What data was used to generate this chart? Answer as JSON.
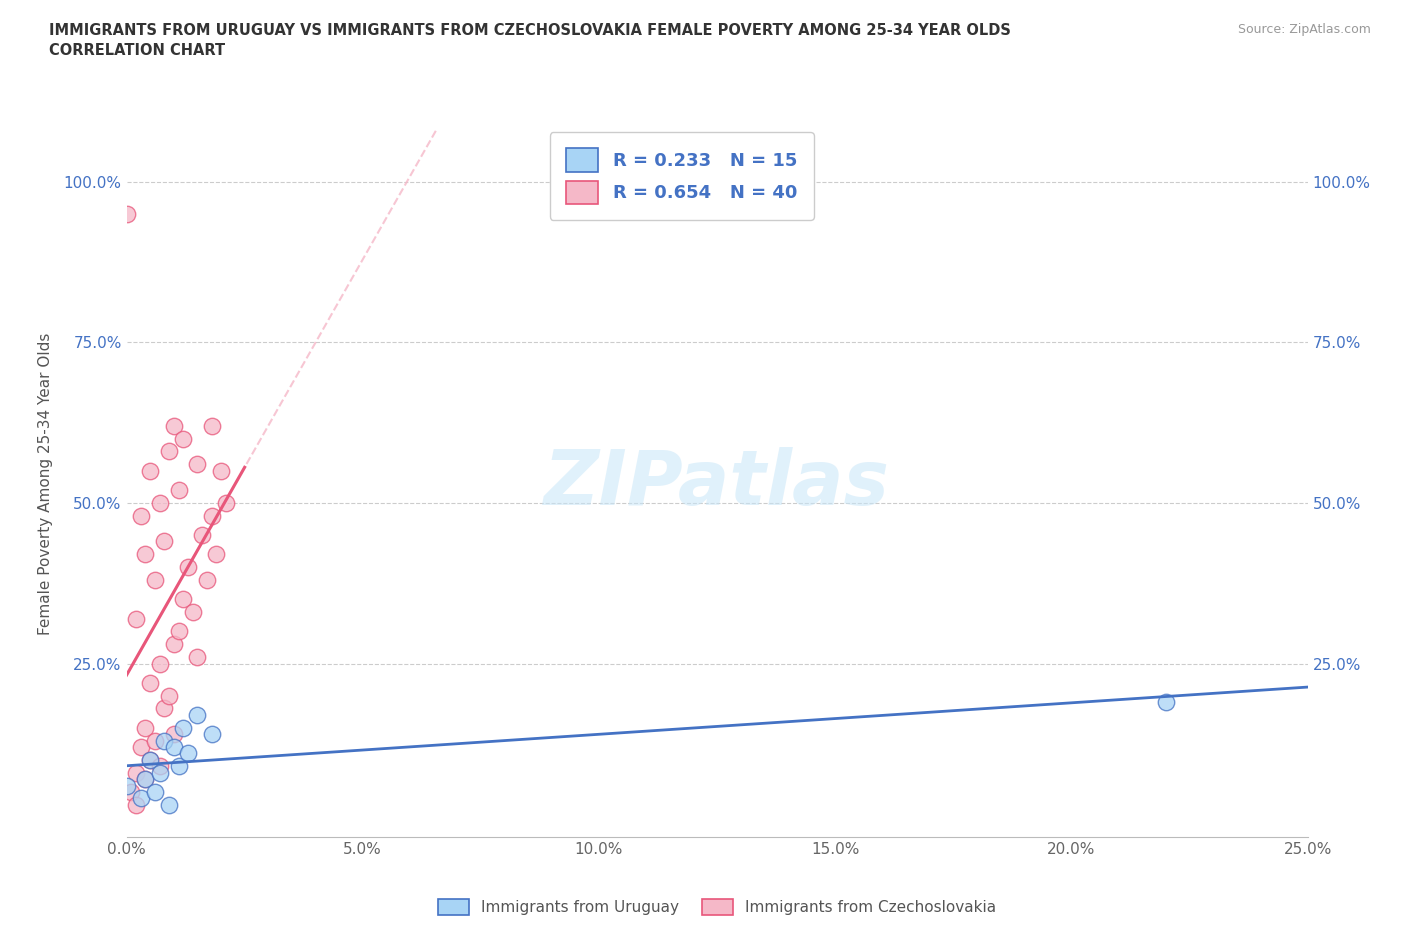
{
  "title_line1": "IMMIGRANTS FROM URUGUAY VS IMMIGRANTS FROM CZECHOSLOVAKIA FEMALE POVERTY AMONG 25-34 YEAR OLDS",
  "title_line2": "CORRELATION CHART",
  "source": "Source: ZipAtlas.com",
  "ylabel": "Female Poverty Among 25-34 Year Olds",
  "xlim": [
    0.0,
    0.25
  ],
  "ylim": [
    -0.02,
    1.08
  ],
  "xtick_labels": [
    "0.0%",
    "5.0%",
    "10.0%",
    "15.0%",
    "20.0%",
    "25.0%"
  ],
  "xtick_vals": [
    0.0,
    0.05,
    0.1,
    0.15,
    0.2,
    0.25
  ],
  "ytick_labels": [
    "25.0%",
    "50.0%",
    "75.0%",
    "100.0%"
  ],
  "ytick_vals": [
    0.25,
    0.5,
    0.75,
    1.0
  ],
  "watermark": "ZIPatlas",
  "legend_label1": "Immigrants from Uruguay",
  "legend_label2": "Immigrants from Czechoslovakia",
  "color_uruguay": "#a8d4f5",
  "color_czech": "#f5b8c8",
  "color_line_uruguay": "#4472C4",
  "color_line_czech": "#E8567A",
  "uruguay_x": [
    0.0,
    0.003,
    0.004,
    0.005,
    0.006,
    0.007,
    0.008,
    0.009,
    0.01,
    0.011,
    0.012,
    0.013,
    0.015,
    0.018,
    0.22
  ],
  "uruguay_y": [
    0.06,
    0.04,
    0.07,
    0.1,
    0.05,
    0.08,
    0.13,
    0.03,
    0.12,
    0.09,
    0.15,
    0.11,
    0.17,
    0.14,
    0.19
  ],
  "czech_x": [
    0.0,
    0.001,
    0.002,
    0.002,
    0.003,
    0.003,
    0.004,
    0.004,
    0.004,
    0.005,
    0.005,
    0.005,
    0.006,
    0.006,
    0.007,
    0.007,
    0.007,
    0.008,
    0.008,
    0.009,
    0.009,
    0.01,
    0.01,
    0.01,
    0.011,
    0.011,
    0.012,
    0.012,
    0.013,
    0.014,
    0.015,
    0.015,
    0.016,
    0.017,
    0.018,
    0.018,
    0.019,
    0.02,
    0.021,
    0.002
  ],
  "czech_y": [
    0.95,
    0.05,
    0.08,
    0.32,
    0.12,
    0.48,
    0.07,
    0.15,
    0.42,
    0.1,
    0.22,
    0.55,
    0.13,
    0.38,
    0.09,
    0.25,
    0.5,
    0.18,
    0.44,
    0.2,
    0.58,
    0.14,
    0.28,
    0.62,
    0.3,
    0.52,
    0.35,
    0.6,
    0.4,
    0.33,
    0.26,
    0.56,
    0.45,
    0.38,
    0.48,
    0.62,
    0.42,
    0.55,
    0.5,
    0.03
  ],
  "trend_czech_x_end": 0.025,
  "trend_czech_dashed_x_end": 0.1
}
